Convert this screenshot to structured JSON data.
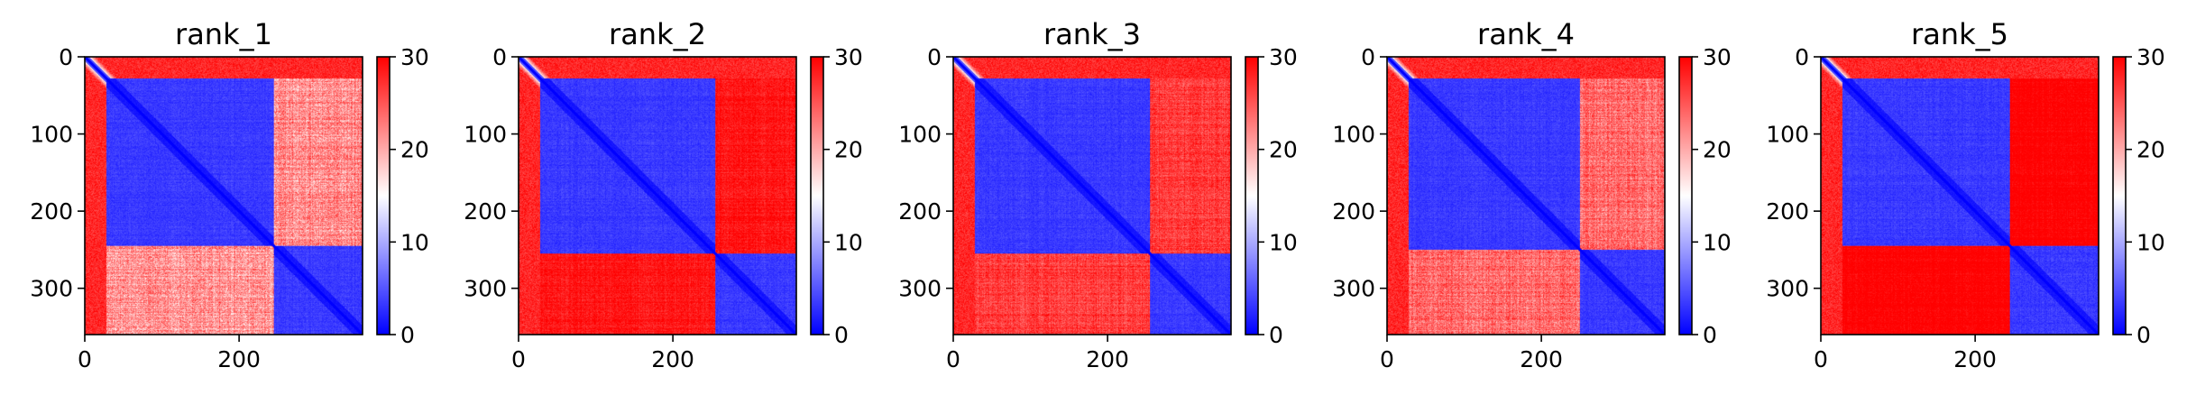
{
  "chart_data": [
    {
      "type": "heatmap",
      "title": "rank_1",
      "x_ticks": [
        "0",
        "200"
      ],
      "y_ticks": [
        "0",
        "100",
        "200",
        "300"
      ],
      "colorbar_ticks": [
        "0",
        "10",
        "20",
        "30"
      ],
      "n": 360,
      "domains": [
        [
          0,
          28
        ],
        [
          28,
          245
        ],
        [
          245,
          360
        ]
      ],
      "off_block_level": 0.55,
      "matrix_size": 360,
      "colormap": "bwr",
      "vmin": 0,
      "vmax": 30,
      "colors": {
        "low": "#0000ff",
        "mid": "#ffffff",
        "high": "#ff0000"
      }
    },
    {
      "type": "heatmap",
      "title": "rank_2",
      "x_ticks": [
        "0",
        "200"
      ],
      "y_ticks": [
        "0",
        "100",
        "200",
        "300"
      ],
      "colorbar_ticks": [
        "0",
        "10",
        "20",
        "30"
      ],
      "n": 360,
      "domains": [
        [
          0,
          28
        ],
        [
          28,
          255
        ],
        [
          255,
          360
        ]
      ],
      "off_block_level": 0.8,
      "matrix_size": 360,
      "colormap": "bwr",
      "vmin": 0,
      "vmax": 30,
      "colors": {
        "low": "#0000ff",
        "mid": "#ffffff",
        "high": "#ff0000"
      }
    },
    {
      "type": "heatmap",
      "title": "rank_3",
      "x_ticks": [
        "0",
        "200"
      ],
      "y_ticks": [
        "0",
        "100",
        "200",
        "300"
      ],
      "colorbar_ticks": [
        "0",
        "10",
        "20",
        "30"
      ],
      "n": 360,
      "domains": [
        [
          0,
          28
        ],
        [
          28,
          255
        ],
        [
          255,
          360
        ]
      ],
      "off_block_level": 0.72,
      "matrix_size": 360,
      "colormap": "bwr",
      "vmin": 0,
      "vmax": 30,
      "colors": {
        "low": "#0000ff",
        "mid": "#ffffff",
        "high": "#ff0000"
      }
    },
    {
      "type": "heatmap",
      "title": "rank_4",
      "x_ticks": [
        "0",
        "200"
      ],
      "y_ticks": [
        "0",
        "100",
        "200",
        "300"
      ],
      "colorbar_ticks": [
        "0",
        "10",
        "20",
        "30"
      ],
      "n": 360,
      "domains": [
        [
          0,
          28
        ],
        [
          28,
          250
        ],
        [
          250,
          360
        ]
      ],
      "off_block_level": 0.62,
      "matrix_size": 360,
      "colormap": "bwr",
      "vmin": 0,
      "vmax": 30,
      "colors": {
        "low": "#0000ff",
        "mid": "#ffffff",
        "high": "#ff0000"
      }
    },
    {
      "type": "heatmap",
      "title": "rank_5",
      "x_ticks": [
        "0",
        "200"
      ],
      "y_ticks": [
        "0",
        "100",
        "200",
        "300"
      ],
      "colorbar_ticks": [
        "0",
        "10",
        "20",
        "30"
      ],
      "n": 360,
      "domains": [
        [
          0,
          28
        ],
        [
          28,
          245
        ],
        [
          245,
          360
        ]
      ],
      "off_block_level": 0.85,
      "matrix_size": 360,
      "colormap": "bwr",
      "vmin": 0,
      "vmax": 30,
      "colors": {
        "low": "#0000ff",
        "mid": "#ffffff",
        "high": "#ff0000"
      }
    }
  ]
}
